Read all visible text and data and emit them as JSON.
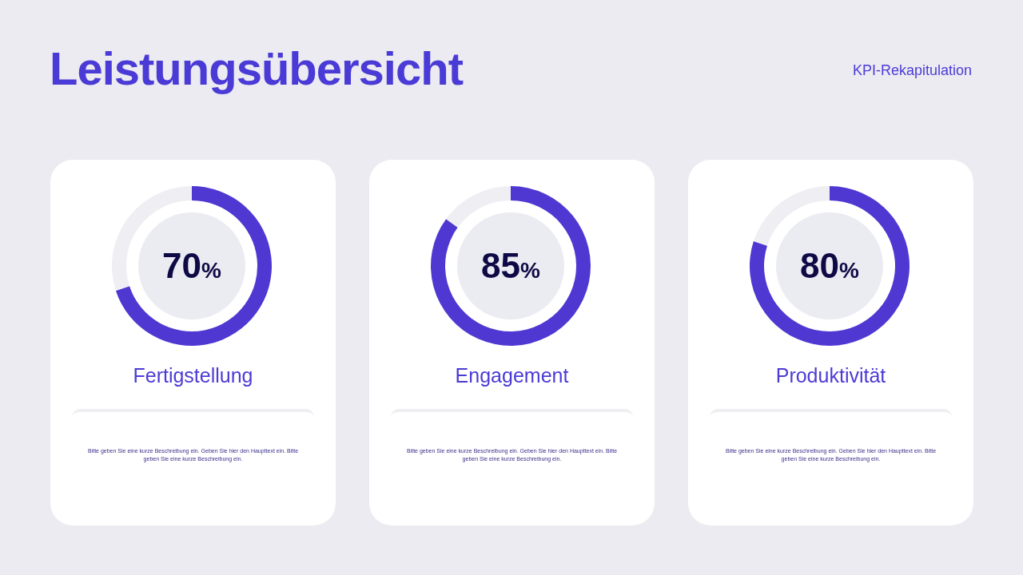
{
  "chart_data": [
    {
      "type": "other",
      "title": "Leistungsübersicht",
      "subtitle": "KPI-Rekapitulation"
    },
    {
      "type": "donut",
      "title": "Fertigstellung",
      "categories": [
        null,
        null
      ],
      "values": [
        70,
        30
      ],
      "colors": [
        "#4f38d2",
        "#efeff3"
      ],
      "value_labels": [
        "70%",
        null
      ],
      "annotations": [
        "Bitte geben Sie eine kurze Beschreibung ein. Geben Sie hier den Haupttext ein. Bitte geben Sie eine kurze Beschreibung ein."
      ]
    },
    {
      "type": "donut",
      "title": "Engagement",
      "categories": [
        null,
        null
      ],
      "values": [
        85,
        15
      ],
      "colors": [
        "#4f38d2",
        "#efeff3"
      ],
      "value_labels": [
        "85%",
        null
      ],
      "annotations": [
        "Bitte geben Sie eine kurze Beschreibung ein. Geben Sie hier den Haupttext ein. Bitte geben Sie eine kurze Beschreibung ein."
      ]
    },
    {
      "type": "donut",
      "title": "Produktivität",
      "categories": [
        null,
        null
      ],
      "values": [
        80,
        20
      ],
      "colors": [
        "#4f38d2",
        "#efeff3"
      ],
      "value_labels": [
        "80%",
        null
      ],
      "annotations": [
        "Bitte geben Sie eine kurze Beschreibung ein. Geben Sie hier den Haupttext ein. Bitte geben Sie eine kurze Beschreibung ein."
      ]
    }
  ]
}
